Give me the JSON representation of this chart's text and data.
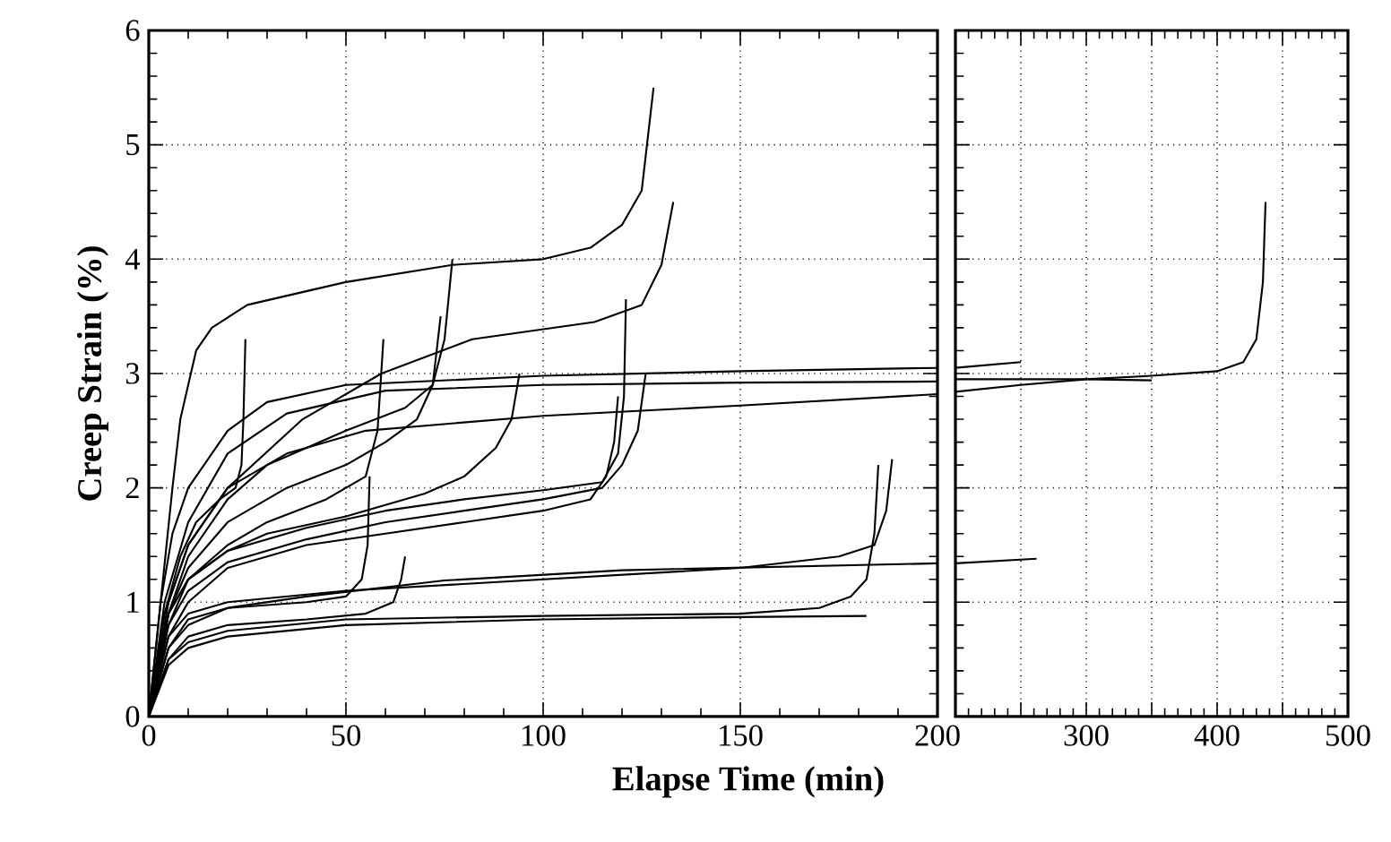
{
  "chart_data": [
    {
      "type": "line",
      "ylabel": "Creep Strain (%)",
      "xlabel": "Elapse Time (min)",
      "xlim": [
        0,
        200
      ],
      "ylim": [
        0,
        6
      ],
      "xticks": [
        0,
        50,
        100,
        150,
        200
      ],
      "yticks": [
        0,
        1,
        2,
        3,
        4,
        5,
        6
      ],
      "grid": true,
      "marker": "none",
      "line_style": "solid",
      "series": [
        {
          "color": "#000000",
          "x": [
            0,
            3,
            6,
            8,
            12,
            16,
            25,
            50,
            77,
            100,
            112,
            120,
            125,
            128
          ],
          "values": [
            0,
            1.0,
            2.0,
            2.6,
            3.2,
            3.4,
            3.6,
            3.8,
            3.95,
            4.0,
            4.1,
            4.3,
            4.6,
            5.5
          ]
        },
        {
          "color": "#000000",
          "x": [
            0,
            5,
            10,
            20,
            30,
            50,
            65,
            72,
            75,
            77
          ],
          "values": [
            0,
            0.9,
            1.4,
            1.9,
            2.2,
            2.5,
            2.7,
            2.9,
            3.3,
            4.0
          ]
        },
        {
          "color": "#000000",
          "x": [
            0,
            4,
            8,
            12,
            18,
            22,
            23.5,
            24,
            24.5
          ],
          "values": [
            0,
            0.9,
            1.4,
            1.7,
            1.9,
            2.0,
            2.2,
            2.6,
            3.3
          ]
        },
        {
          "color": "#000000",
          "x": [
            0,
            5,
            10,
            20,
            30,
            45,
            55,
            58,
            59.5
          ],
          "values": [
            0,
            0.8,
            1.2,
            1.5,
            1.7,
            1.9,
            2.1,
            2.5,
            3.3
          ]
        },
        {
          "color": "#000000",
          "x": [
            0,
            5,
            10,
            20,
            35,
            50,
            60,
            68,
            72,
            74
          ],
          "values": [
            0,
            0.9,
            1.3,
            1.7,
            2.0,
            2.2,
            2.4,
            2.6,
            2.9,
            3.5
          ]
        },
        {
          "color": "#000000",
          "x": [
            0,
            5,
            10,
            20,
            40,
            50,
            54,
            55.5,
            56
          ],
          "values": [
            0,
            0.6,
            0.85,
            0.95,
            1.0,
            1.05,
            1.2,
            1.5,
            2.1
          ]
        },
        {
          "color": "#000000",
          "x": [
            0,
            5,
            10,
            20,
            40,
            55,
            62,
            64,
            65
          ],
          "values": [
            0,
            0.5,
            0.7,
            0.8,
            0.85,
            0.9,
            1.0,
            1.2,
            1.4
          ]
        },
        {
          "color": "#000000",
          "x": [
            0,
            5,
            10,
            20,
            30,
            50,
            70,
            80,
            88,
            92,
            94
          ],
          "values": [
            0,
            0.9,
            1.2,
            1.45,
            1.6,
            1.75,
            1.95,
            2.1,
            2.35,
            2.6,
            3.0
          ]
        },
        {
          "color": "#000000",
          "x": [
            0,
            5,
            10,
            20,
            39,
            59,
            82,
            113,
            125,
            130,
            133
          ],
          "values": [
            0,
            1.0,
            1.5,
            2.0,
            2.6,
            3.0,
            3.3,
            3.45,
            3.6,
            3.95,
            4.5
          ]
        },
        {
          "color": "#000000",
          "x": [
            0,
            5,
            10,
            20,
            40,
            60,
            80,
            100,
            115,
            119,
            120.5,
            121
          ],
          "values": [
            0,
            0.9,
            1.2,
            1.45,
            1.65,
            1.8,
            1.9,
            1.98,
            2.05,
            2.3,
            2.8,
            3.65
          ]
        },
        {
          "color": "#000000",
          "x": [
            0,
            5,
            10,
            20,
            40,
            60,
            80,
            100,
            112,
            116,
            118,
            119
          ],
          "values": [
            0,
            0.7,
            1.0,
            1.3,
            1.5,
            1.6,
            1.7,
            1.8,
            1.9,
            2.1,
            2.4,
            2.8
          ]
        },
        {
          "color": "#000000",
          "x": [
            0,
            5,
            10,
            20,
            40,
            60,
            80,
            100,
            115,
            120,
            124,
            126
          ],
          "values": [
            0,
            0.8,
            1.1,
            1.35,
            1.55,
            1.7,
            1.8,
            1.9,
            2.0,
            2.2,
            2.5,
            3.0
          ]
        },
        {
          "color": "#000000",
          "x": [
            0,
            3,
            6,
            10,
            20,
            30,
            50,
            100,
            150,
            200
          ],
          "values": [
            0,
            1.0,
            1.6,
            2.0,
            2.5,
            2.75,
            2.9,
            2.98,
            3.02,
            3.05
          ]
        },
        {
          "color": "#000000",
          "x": [
            0,
            4,
            10,
            20,
            35,
            55,
            100,
            150,
            200
          ],
          "values": [
            0,
            0.9,
            1.5,
            2.0,
            2.3,
            2.5,
            2.63,
            2.72,
            2.82
          ]
        },
        {
          "color": "#000000",
          "x": [
            0,
            4,
            10,
            20,
            35,
            60,
            100,
            150,
            200
          ],
          "values": [
            0,
            1.0,
            1.7,
            2.3,
            2.65,
            2.85,
            2.9,
            2.92,
            2.93
          ]
        },
        {
          "color": "#000000",
          "x": [
            0,
            5,
            10,
            20,
            40,
            75,
            120,
            200
          ],
          "values": [
            0,
            0.6,
            0.8,
            0.95,
            1.05,
            1.19,
            1.28,
            1.34
          ]
        },
        {
          "color": "#000000",
          "x": [
            0,
            5,
            10,
            20,
            50,
            100,
            150,
            175,
            184,
            187,
            188.5
          ],
          "values": [
            0,
            0.7,
            0.9,
            1.0,
            1.1,
            1.2,
            1.3,
            1.4,
            1.5,
            1.8,
            2.25
          ]
        },
        {
          "color": "#000000",
          "x": [
            0,
            5,
            10,
            20,
            50,
            100,
            150,
            170,
            178,
            182,
            184,
            185
          ],
          "values": [
            0,
            0.5,
            0.65,
            0.75,
            0.85,
            0.88,
            0.9,
            0.95,
            1.05,
            1.2,
            1.6,
            2.2
          ]
        },
        {
          "color": "#000000",
          "x": [
            0,
            5,
            10,
            20,
            50,
            100,
            150,
            182
          ],
          "values": [
            0,
            0.45,
            0.6,
            0.7,
            0.8,
            0.85,
            0.87,
            0.88
          ]
        }
      ]
    },
    {
      "type": "line",
      "xlim": [
        200,
        500
      ],
      "ylim": [
        0,
        6
      ],
      "xticks": [
        {
          "value": 200,
          "label": null
        },
        {
          "value": 250,
          "label": null
        },
        300,
        {
          "value": 350,
          "label": null
        },
        400,
        {
          "value": 450,
          "label": null
        },
        500
      ],
      "yticks": [
        0,
        1,
        2,
        3,
        4,
        5,
        6
      ],
      "tick_labels": "x",
      "grid": true,
      "marker": "none",
      "line_style": "solid",
      "series": [
        {
          "color": "#000000",
          "x": [
            200,
            250
          ],
          "values": [
            3.05,
            3.1
          ]
        },
        {
          "color": "#000000",
          "x": [
            200,
            250,
            300,
            350,
            400,
            420,
            430,
            435,
            437
          ],
          "values": [
            2.84,
            2.9,
            2.95,
            2.98,
            3.02,
            3.1,
            3.3,
            3.8,
            4.5
          ]
        },
        {
          "color": "#000000",
          "x": [
            200,
            300,
            350
          ],
          "values": [
            2.95,
            2.95,
            2.94
          ]
        },
        {
          "color": "#000000",
          "x": [
            200,
            262
          ],
          "values": [
            1.34,
            1.38
          ]
        }
      ]
    }
  ]
}
